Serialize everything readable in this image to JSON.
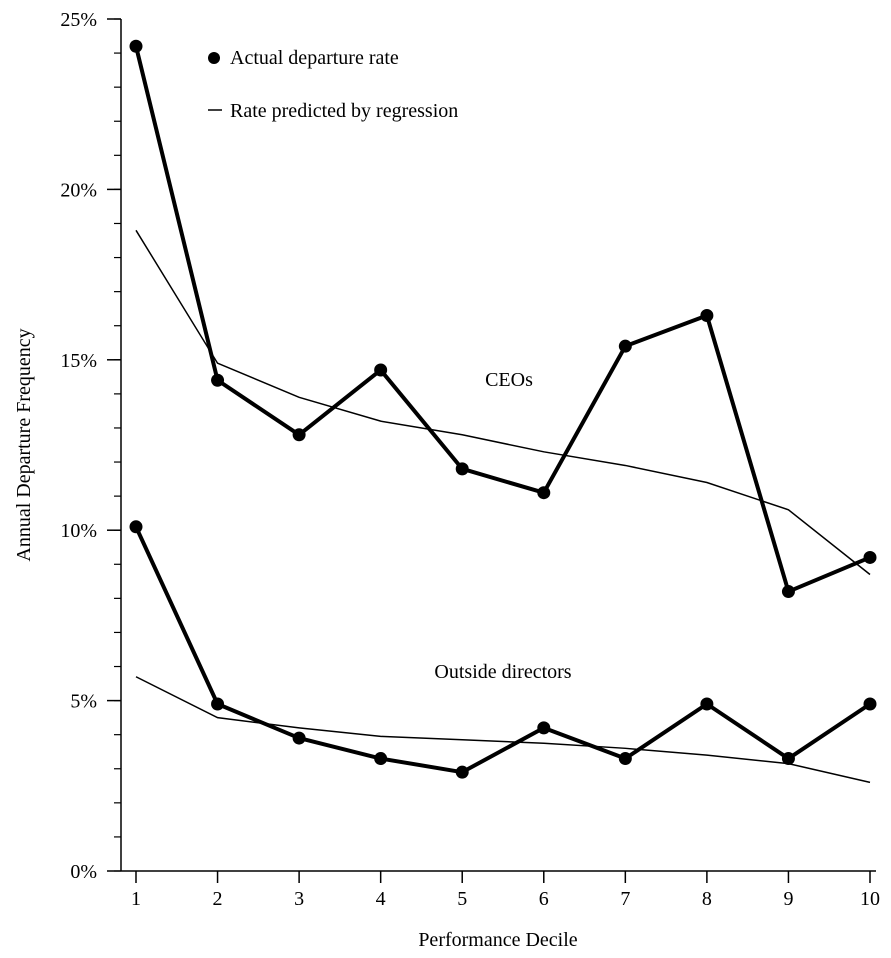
{
  "chart_data": {
    "type": "line",
    "xlabel": "Performance Decile",
    "ylabel": "Annual Departure Frequency",
    "x": [
      1,
      2,
      3,
      4,
      5,
      6,
      7,
      8,
      9,
      10
    ],
    "xlim": [
      0.8,
      10.2
    ],
    "ylim": [
      0,
      25
    ],
    "y_ticks": [
      {
        "value": 0,
        "label": "0%"
      },
      {
        "value": 5,
        "label": "5%"
      },
      {
        "value": 10,
        "label": "10%"
      },
      {
        "value": 15,
        "label": "15%"
      },
      {
        "value": 20,
        "label": "20%"
      },
      {
        "value": 25,
        "label": "25%"
      }
    ],
    "y_minor_step": 1,
    "x_tick_labels": [
      "1",
      "2",
      "3",
      "4",
      "5",
      "6",
      "7",
      "8",
      "9",
      "10"
    ],
    "legend": [
      {
        "label": "Actual departure rate",
        "marker": "dot"
      },
      {
        "label": "Rate predicted by regression",
        "marker": "line"
      }
    ],
    "groups": [
      {
        "name": "CEOs",
        "actual": [
          24.2,
          14.4,
          12.8,
          14.7,
          11.8,
          11.1,
          15.4,
          16.3,
          8.2,
          9.2
        ],
        "predicted": [
          18.8,
          14.9,
          13.9,
          13.2,
          12.8,
          12.3,
          11.9,
          11.4,
          10.6,
          8.7
        ]
      },
      {
        "name": "Outside directors",
        "actual": [
          10.1,
          4.9,
          3.9,
          3.3,
          2.9,
          4.2,
          3.3,
          4.9,
          3.3,
          4.9
        ],
        "predicted": [
          5.7,
          4.5,
          4.2,
          3.95,
          3.85,
          3.75,
          3.6,
          3.4,
          3.15,
          2.6
        ]
      }
    ],
    "grid": false,
    "legend_position": "top-left",
    "colors": {
      "line": "#000000",
      "marker": "#000000"
    }
  }
}
